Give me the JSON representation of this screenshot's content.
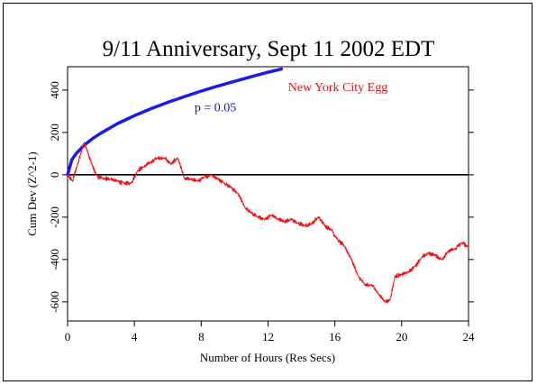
{
  "chart_data": {
    "type": "line",
    "title": "9/11 Anniversary, Sept 11 2002 EDT",
    "xlabel": "Number of Hours (Res Secs)",
    "ylabel": "Cum Dev (Z^2-1)",
    "xlim": [
      0,
      24
    ],
    "ylim": [
      -690,
      510
    ],
    "x_ticks": [
      0,
      4,
      8,
      12,
      16,
      20,
      24
    ],
    "y_ticks": [
      -600,
      -400,
      -200,
      0,
      200,
      400
    ],
    "grid": false,
    "annotations": [
      {
        "text": "p = 0.05",
        "x": 7.6,
        "y": 300,
        "color": "#1010cc"
      },
      {
        "text": "New York City Egg",
        "x": 13.2,
        "y": 395,
        "color": "#dd1111"
      }
    ],
    "reference_line": {
      "y": 0,
      "color": "#000000"
    },
    "significance_curve": {
      "label": "p = 0.05",
      "color": "#1a1aee",
      "formula": "1.645*sqrt(2*3600*h)",
      "x": [
        0,
        0.25,
        0.5,
        1,
        1.5,
        2,
        3,
        4,
        5,
        6,
        7,
        8,
        9,
        10,
        11,
        12,
        12.8
      ],
      "y": [
        0,
        70,
        99,
        140,
        171,
        197,
        242,
        279,
        312,
        342,
        369,
        395,
        419,
        441,
        463,
        484,
        499
      ]
    },
    "series": [
      {
        "color": "#ee1111",
        "x": [
          0,
          0.3,
          0.6,
          0.9,
          1.0,
          1.2,
          1.5,
          1.8,
          2.2,
          2.6,
          3.0,
          3.4,
          3.8,
          4.2,
          4.6,
          5.0,
          5.4,
          5.8,
          6.2,
          6.6,
          7.0,
          7.4,
          7.8,
          8.2,
          8.6,
          9.0,
          9.4,
          9.8,
          10.2,
          10.6,
          11.0,
          11.4,
          11.8,
          12.2,
          12.6,
          13.0,
          13.4,
          13.8,
          14.2,
          14.6,
          15.0,
          15.4,
          15.8,
          16.2,
          16.6,
          17.0,
          17.4,
          17.8,
          18.2,
          18.6,
          19.0,
          19.3,
          19.6,
          20.0,
          20.4,
          20.8,
          21.2,
          21.6,
          22.0,
          22.4,
          22.8,
          23.2,
          23.6,
          24.0
        ],
        "y": [
          0,
          -30,
          50,
          130,
          150,
          110,
          40,
          -10,
          -20,
          -20,
          -30,
          -40,
          -40,
          20,
          40,
          60,
          80,
          80,
          50,
          80,
          -20,
          -20,
          -30,
          -10,
          0,
          -20,
          -40,
          -60,
          -90,
          -150,
          -180,
          -200,
          -210,
          -190,
          -210,
          -220,
          -210,
          -230,
          -240,
          -230,
          -200,
          -240,
          -260,
          -310,
          -340,
          -400,
          -480,
          -520,
          -520,
          -560,
          -600,
          -590,
          -480,
          -470,
          -460,
          -430,
          -390,
          -370,
          -380,
          -400,
          -360,
          -350,
          -320,
          -340
        ]
      }
    ]
  }
}
